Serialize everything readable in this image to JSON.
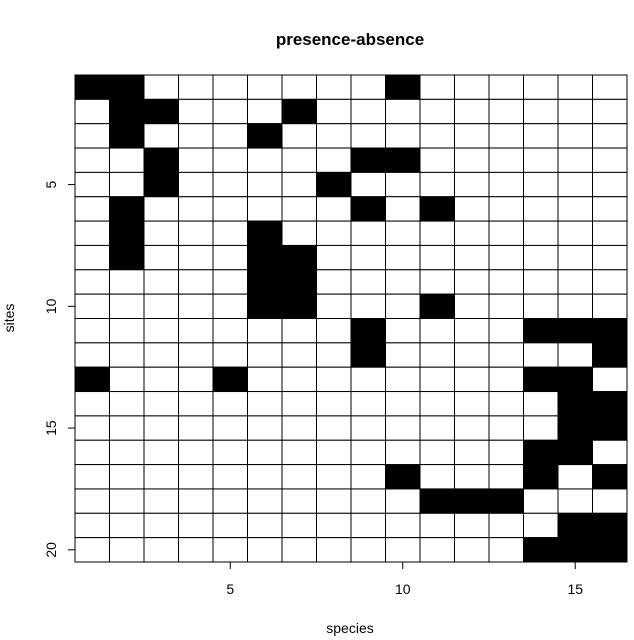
{
  "chart_data": {
    "type": "heatmap",
    "title": "presence-absence",
    "xlabel": "species",
    "ylabel": "sites",
    "xlim": [
      0.5,
      16.5
    ],
    "ylim": [
      20.5,
      0.5
    ],
    "x_ticks": [
      5,
      10,
      15
    ],
    "y_ticks": [
      5,
      10,
      15,
      20
    ],
    "colors": {
      "present": "#000000",
      "absent": "#ffffff",
      "grid": "#000000"
    },
    "n_species": 16,
    "n_sites": 20,
    "matrix": [
      [
        1,
        1,
        0,
        0,
        0,
        0,
        0,
        0,
        0,
        1,
        0,
        0,
        0,
        0,
        0,
        0
      ],
      [
        0,
        1,
        1,
        0,
        0,
        0,
        1,
        0,
        0,
        0,
        0,
        0,
        0,
        0,
        0,
        0
      ],
      [
        0,
        1,
        0,
        0,
        0,
        1,
        0,
        0,
        0,
        0,
        0,
        0,
        0,
        0,
        0,
        0
      ],
      [
        0,
        0,
        1,
        0,
        0,
        0,
        0,
        0,
        1,
        1,
        0,
        0,
        0,
        0,
        0,
        0
      ],
      [
        0,
        0,
        1,
        0,
        0,
        0,
        0,
        1,
        0,
        0,
        0,
        0,
        0,
        0,
        0,
        0
      ],
      [
        0,
        1,
        0,
        0,
        0,
        0,
        0,
        0,
        1,
        0,
        1,
        0,
        0,
        0,
        0,
        0
      ],
      [
        0,
        1,
        0,
        0,
        0,
        1,
        0,
        0,
        0,
        0,
        0,
        0,
        0,
        0,
        0,
        0
      ],
      [
        0,
        1,
        0,
        0,
        0,
        1,
        1,
        0,
        0,
        0,
        0,
        0,
        0,
        0,
        0,
        0
      ],
      [
        0,
        0,
        0,
        0,
        0,
        1,
        1,
        0,
        0,
        0,
        0,
        0,
        0,
        0,
        0,
        0
      ],
      [
        0,
        0,
        0,
        0,
        0,
        1,
        1,
        0,
        0,
        0,
        1,
        0,
        0,
        0,
        0,
        0
      ],
      [
        0,
        0,
        0,
        0,
        0,
        0,
        0,
        0,
        1,
        0,
        0,
        0,
        0,
        1,
        1,
        1
      ],
      [
        0,
        0,
        0,
        0,
        0,
        0,
        0,
        0,
        1,
        0,
        0,
        0,
        0,
        0,
        0,
        1
      ],
      [
        1,
        0,
        0,
        0,
        1,
        0,
        0,
        0,
        0,
        0,
        0,
        0,
        0,
        1,
        1,
        0
      ],
      [
        0,
        0,
        0,
        0,
        0,
        0,
        0,
        0,
        0,
        0,
        0,
        0,
        0,
        0,
        1,
        1
      ],
      [
        0,
        0,
        0,
        0,
        0,
        0,
        0,
        0,
        0,
        0,
        0,
        0,
        0,
        0,
        1,
        1
      ],
      [
        0,
        0,
        0,
        0,
        0,
        0,
        0,
        0,
        0,
        0,
        0,
        0,
        0,
        1,
        1,
        0
      ],
      [
        0,
        0,
        0,
        0,
        0,
        0,
        0,
        0,
        0,
        1,
        0,
        0,
        0,
        1,
        0,
        1
      ],
      [
        0,
        0,
        0,
        0,
        0,
        0,
        0,
        0,
        0,
        0,
        1,
        1,
        1,
        0,
        0,
        0
      ],
      [
        0,
        0,
        0,
        0,
        0,
        0,
        0,
        0,
        0,
        0,
        0,
        0,
        0,
        0,
        1,
        1
      ],
      [
        0,
        0,
        0,
        0,
        0,
        0,
        0,
        0,
        0,
        0,
        0,
        0,
        0,
        1,
        1,
        1
      ]
    ]
  }
}
